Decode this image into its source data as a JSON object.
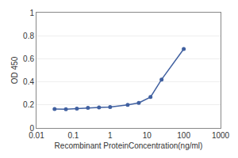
{
  "chart_data": {
    "type": "line",
    "x": [
      0.031,
      0.063,
      0.125,
      0.25,
      0.5,
      1.0,
      3.0,
      6.0,
      12.5,
      25.0,
      100.0
    ],
    "values": [
      0.165,
      0.163,
      0.168,
      0.175,
      0.178,
      0.182,
      0.2,
      0.218,
      0.268,
      0.42,
      0.685
    ],
    "xlabel": "Recombinant ProteinConcentration(ng/ml)",
    "ylabel": "OD 450",
    "color": "#4060a0",
    "marker": "circle",
    "log": "x",
    "grid": "y",
    "xlim": [
      0.01,
      1000
    ],
    "ylim": [
      0,
      1
    ],
    "xticks": [
      0.01,
      0.1,
      1,
      10,
      100,
      1000
    ],
    "yticks": [
      0,
      0.2,
      0.4,
      0.6,
      0.8,
      1
    ]
  }
}
